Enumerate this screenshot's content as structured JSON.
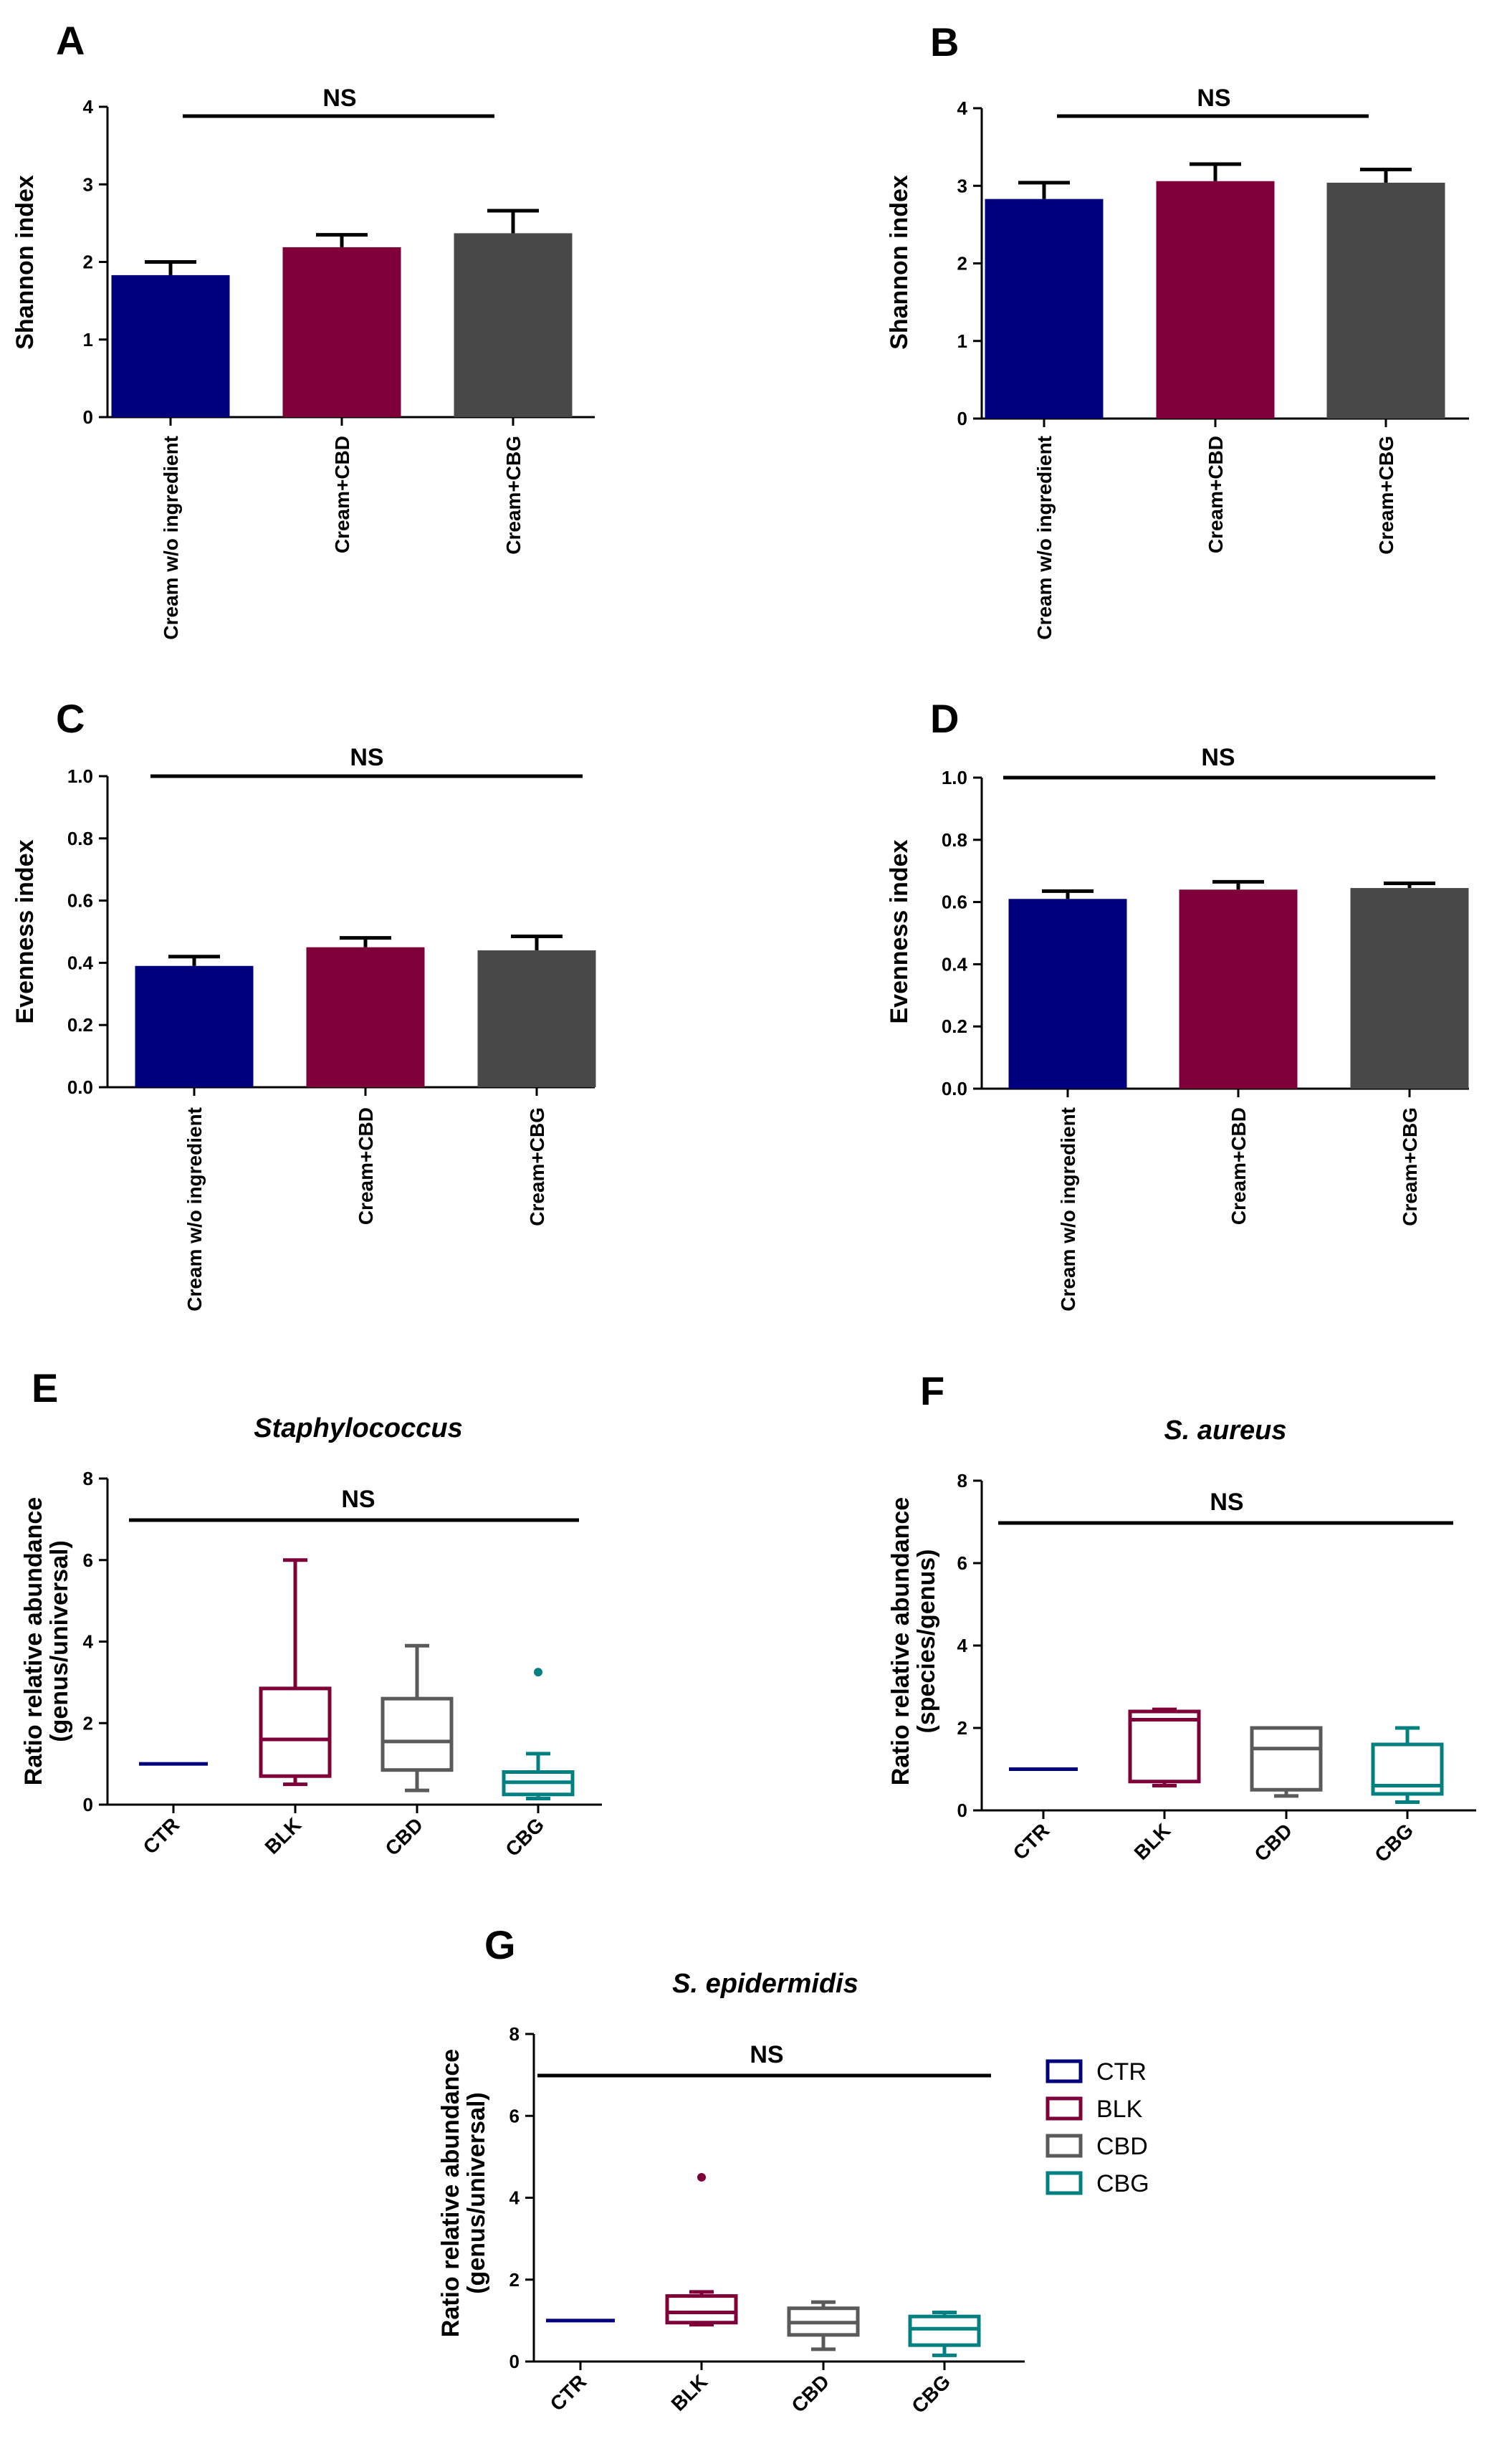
{
  "chart_data": [
    {
      "id": "A",
      "type": "bar",
      "panel_label": "A",
      "ylabel": "Shannon index",
      "ylim": [
        0,
        4
      ],
      "yticks": [
        0,
        1,
        2,
        3,
        4
      ],
      "categories": [
        "Cream w/o ingredient",
        "Cream+CBD",
        "Cream+CBG"
      ],
      "values": [
        1.83,
        2.19,
        2.37
      ],
      "errors": [
        0.17,
        0.16,
        0.29
      ],
      "colors": [
        "#00007f",
        "#7f0038",
        "#484848"
      ],
      "annotation": "NS"
    },
    {
      "id": "B",
      "type": "bar",
      "panel_label": "B",
      "ylabel": "Shannon index",
      "ylim": [
        0,
        4
      ],
      "yticks": [
        0,
        1,
        2,
        3,
        4
      ],
      "categories": [
        "Cream w/o ingredient",
        "Cream+CBD",
        "Cream+CBG"
      ],
      "values": [
        2.83,
        3.06,
        3.04
      ],
      "errors": [
        0.21,
        0.22,
        0.17
      ],
      "colors": [
        "#00007f",
        "#7f0038",
        "#484848"
      ],
      "annotation": "NS"
    },
    {
      "id": "C",
      "type": "bar",
      "panel_label": "C",
      "ylabel": "Evenness index",
      "ylim": [
        0,
        1.0
      ],
      "yticks": [
        "0.0",
        "0.2",
        "0.4",
        "0.6",
        "0.8",
        "1.0"
      ],
      "categories": [
        "Cream w/o ingredient",
        "Cream+CBD",
        "Cream+CBG"
      ],
      "values": [
        0.39,
        0.45,
        0.44
      ],
      "errors": [
        0.03,
        0.03,
        0.045
      ],
      "colors": [
        "#00007f",
        "#7f0038",
        "#484848"
      ],
      "annotation": "NS"
    },
    {
      "id": "D",
      "type": "bar",
      "panel_label": "D",
      "ylabel": "Evenness index",
      "ylim": [
        0,
        1.0
      ],
      "yticks": [
        "0.0",
        "0.2",
        "0.4",
        "0.6",
        "0.8",
        "1.0"
      ],
      "categories": [
        "Cream w/o ingredient",
        "Cream+CBD",
        "Cream+CBG"
      ],
      "values": [
        0.61,
        0.64,
        0.645
      ],
      "errors": [
        0.025,
        0.025,
        0.015
      ],
      "colors": [
        "#00007f",
        "#7f0038",
        "#484848"
      ],
      "annotation": "NS"
    },
    {
      "id": "E",
      "type": "box",
      "panel_label": "E",
      "title": "Staphylococcus",
      "ylabel_lines": [
        "Ratio relative abundance",
        "(genus/universal)"
      ],
      "ylim": [
        0,
        8
      ],
      "yticks": [
        0,
        2,
        4,
        6,
        8
      ],
      "categories": [
        "CTR",
        "BLK",
        "CBD",
        "CBG"
      ],
      "boxes": [
        {
          "min": 1.0,
          "q1": 1.0,
          "median": 1.0,
          "q3": 1.0,
          "max": 1.0,
          "outliers": []
        },
        {
          "min": 0.5,
          "q1": 0.7,
          "median": 1.6,
          "q3": 2.85,
          "max": 6.0,
          "outliers": []
        },
        {
          "min": 0.35,
          "q1": 0.85,
          "median": 1.55,
          "q3": 2.6,
          "max": 3.9,
          "outliers": []
        },
        {
          "min": 0.15,
          "q1": 0.25,
          "median": 0.55,
          "q3": 0.8,
          "max": 1.25,
          "outliers": [
            3.25
          ]
        }
      ],
      "colors": [
        "#00007f",
        "#7f0038",
        "#5a5a5a",
        "#008080"
      ],
      "annotation": "NS"
    },
    {
      "id": "F",
      "type": "box",
      "panel_label": "F",
      "title": "S. aureus",
      "ylabel_lines": [
        "Ratio relative abundance",
        "(species/genus)"
      ],
      "ylim": [
        0,
        8
      ],
      "yticks": [
        0,
        2,
        4,
        6,
        8
      ],
      "categories": [
        "CTR",
        "BLK",
        "CBD",
        "CBG"
      ],
      "boxes": [
        {
          "min": 1.0,
          "q1": 1.0,
          "median": 1.0,
          "q3": 1.0,
          "max": 1.0,
          "outliers": []
        },
        {
          "min": 0.6,
          "q1": 0.7,
          "median": 2.2,
          "q3": 2.4,
          "max": 2.45,
          "outliers": []
        },
        {
          "min": 0.35,
          "q1": 0.5,
          "median": 1.5,
          "q3": 2.0,
          "max": 2.0,
          "outliers": []
        },
        {
          "min": 0.2,
          "q1": 0.4,
          "median": 0.6,
          "q3": 1.6,
          "max": 2.0,
          "outliers": []
        }
      ],
      "colors": [
        "#00007f",
        "#7f0038",
        "#5a5a5a",
        "#008080"
      ],
      "annotation": "NS"
    },
    {
      "id": "G",
      "type": "box",
      "panel_label": "G",
      "title": "S. epidermidis",
      "ylabel_lines": [
        "Ratio relative abundance",
        "(genus/universal)"
      ],
      "ylim": [
        0,
        8
      ],
      "yticks": [
        0,
        2,
        4,
        6,
        8
      ],
      "categories": [
        "CTR",
        "BLK",
        "CBD",
        "CBG"
      ],
      "boxes": [
        {
          "min": 1.0,
          "q1": 1.0,
          "median": 1.0,
          "q3": 1.0,
          "max": 1.0,
          "outliers": []
        },
        {
          "min": 0.9,
          "q1": 0.95,
          "median": 1.2,
          "q3": 1.6,
          "max": 1.7,
          "outliers": [
            4.5
          ]
        },
        {
          "min": 0.3,
          "q1": 0.65,
          "median": 0.95,
          "q3": 1.3,
          "max": 1.45,
          "outliers": []
        },
        {
          "min": 0.15,
          "q1": 0.4,
          "median": 0.8,
          "q3": 1.1,
          "max": 1.2,
          "outliers": []
        }
      ],
      "colors": [
        "#00007f",
        "#7f0038",
        "#5a5a5a",
        "#008080"
      ],
      "annotation": "NS"
    }
  ],
  "legend": {
    "items": [
      {
        "label": "CTR",
        "color": "#00007f"
      },
      {
        "label": "BLK",
        "color": "#7f0038"
      },
      {
        "label": "CBD",
        "color": "#5a5a5a"
      },
      {
        "label": "CBG",
        "color": "#008080"
      }
    ]
  }
}
